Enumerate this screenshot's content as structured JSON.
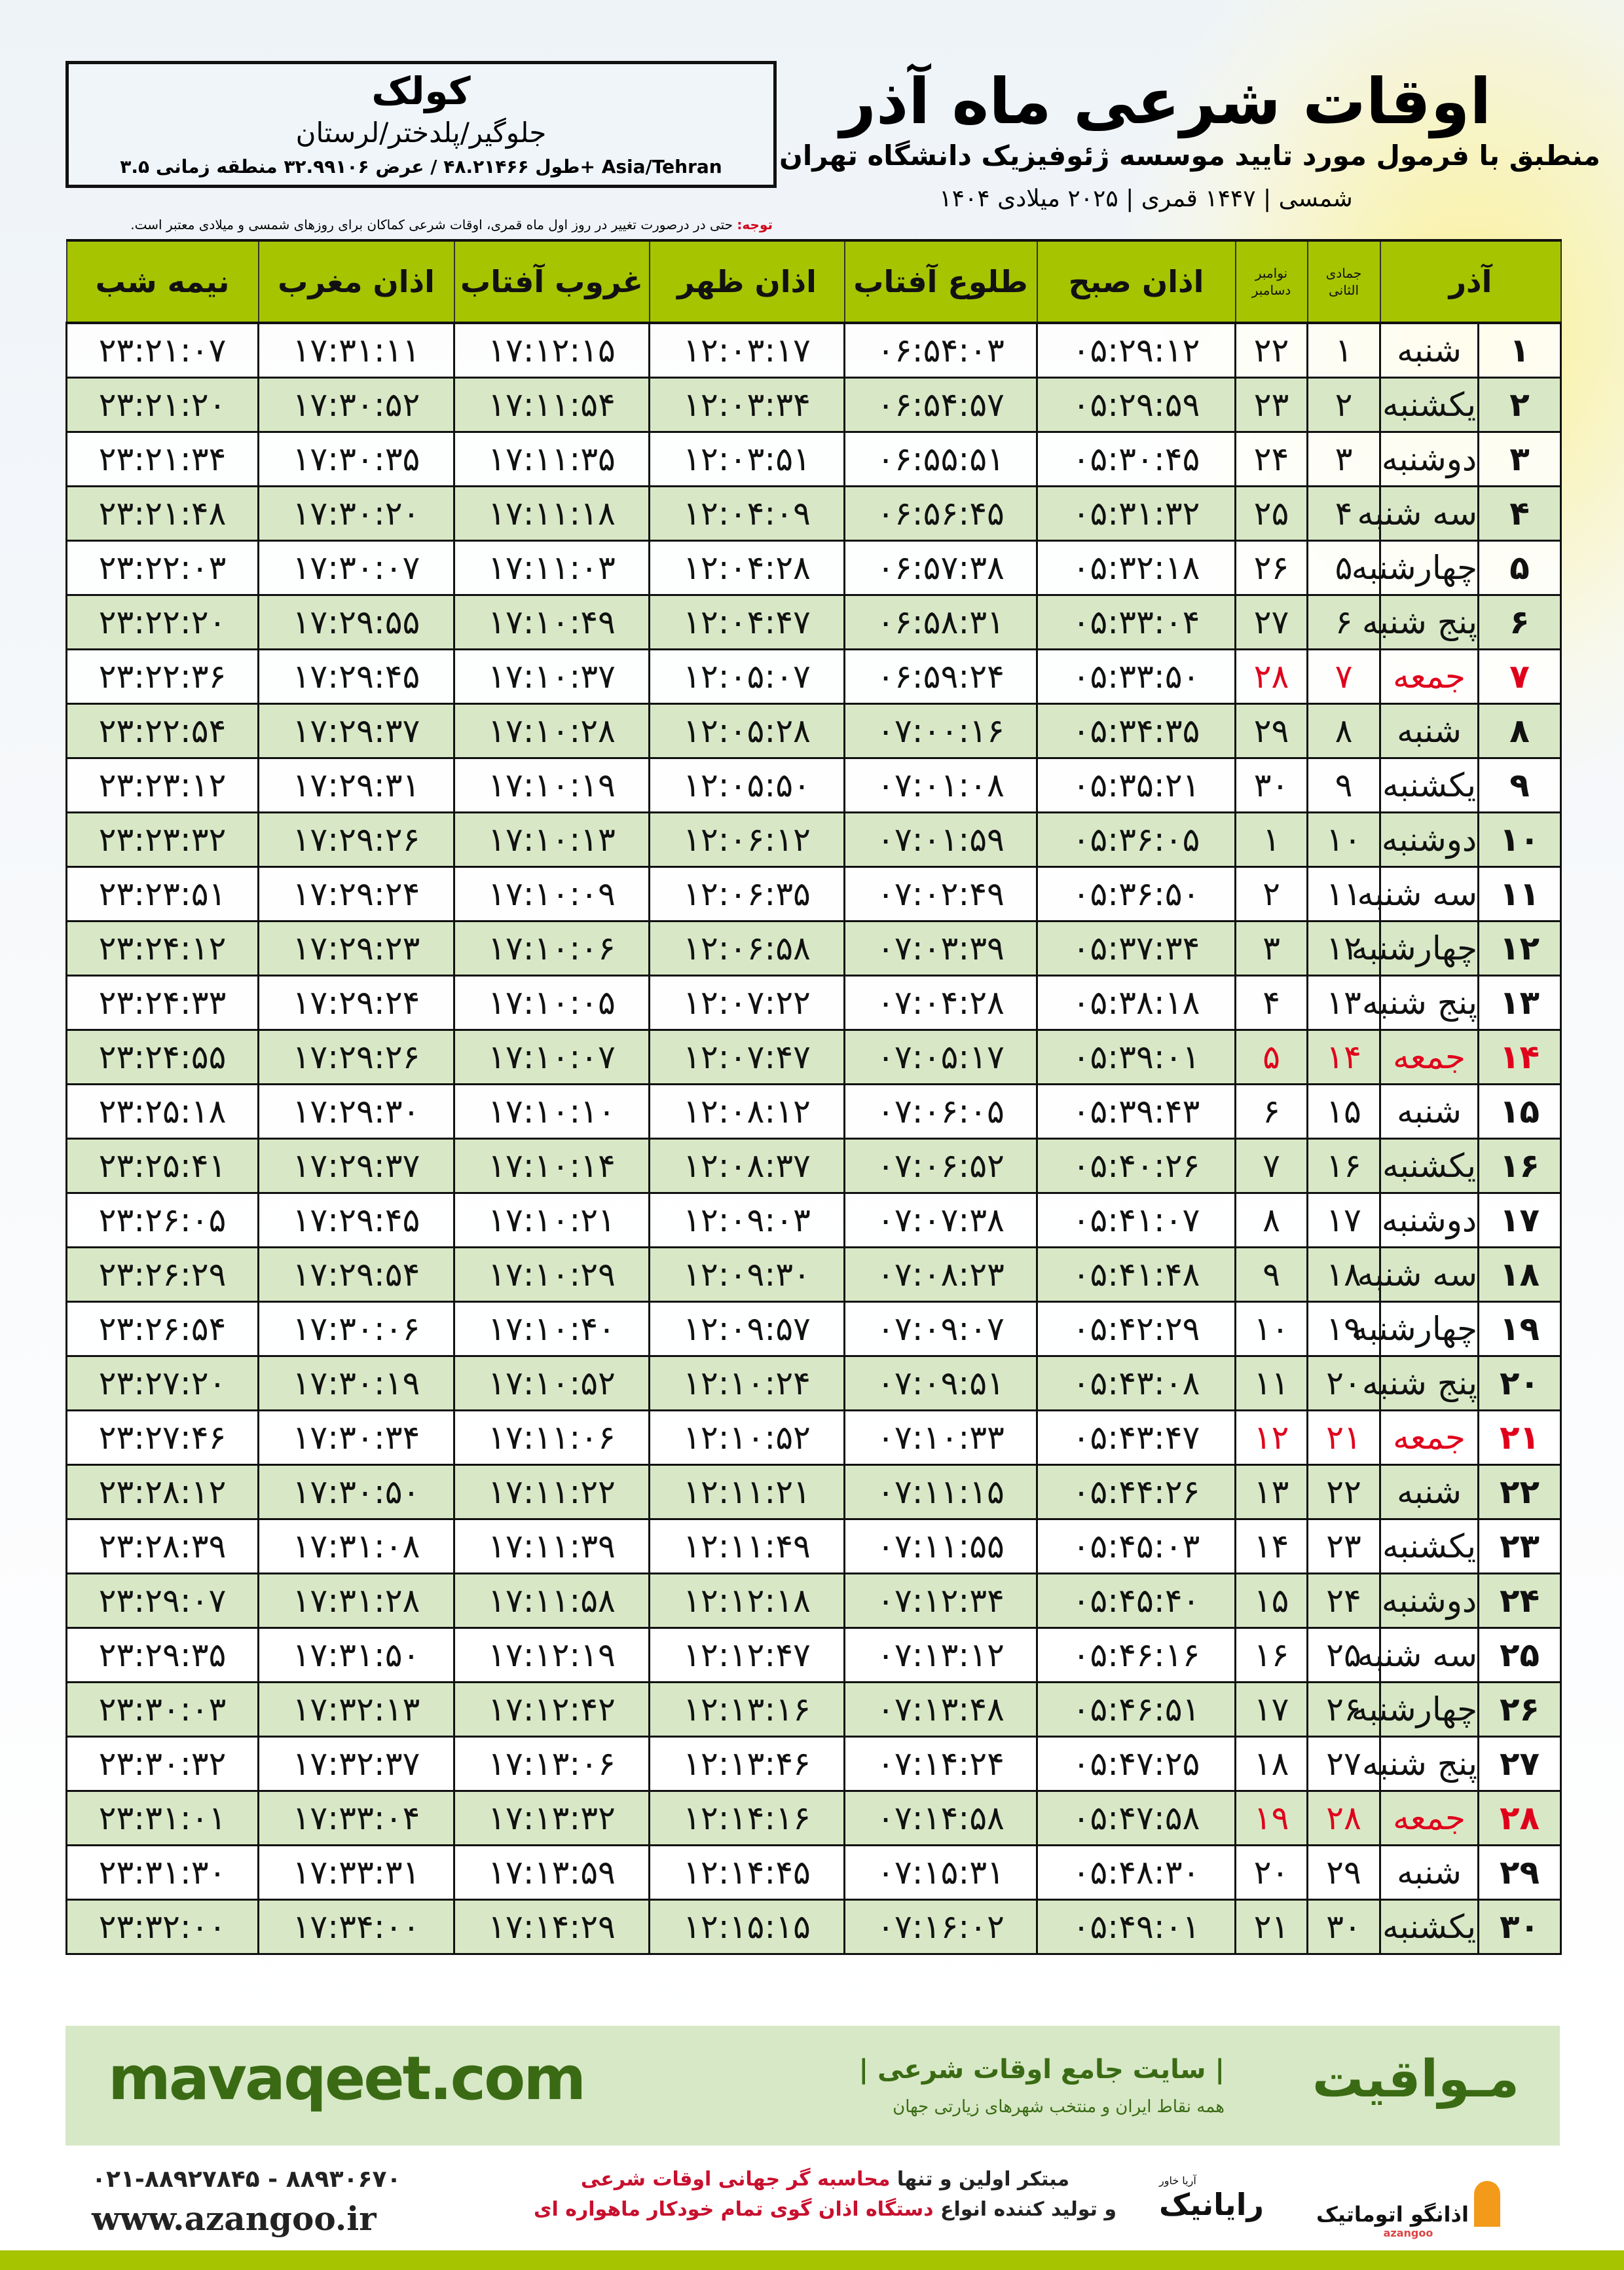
{
  "location": {
    "city": "کولک",
    "region": "جلوگیر/پلدختر/لرستان",
    "coords": "طول ۴۸.۲۱۴۶۶ / عرض ۳۲.۹۹۱۰۶ منطقه زمانی ۳.۵+ Asia/Tehran"
  },
  "header": {
    "title": "اوقات شرعی ماه آذر",
    "subtitle": "منطبق با فرمول مورد تایید موسسه ژئوفیزیک دانشگاه تهران",
    "dates": "۱۴۰۴ شمسی | ۱۴۴۷ قمری | ۲۰۲۵ میلادی",
    "note_label": "توجه:",
    "note_text": " حتی در درصورت تغییر در روز اول ماه قمری، اوقات شرعی کماکان برای روزهای شمسی و میلادی معتبر است."
  },
  "colors": {
    "header_green": "#a6c400",
    "row_green": "#d8e8c6",
    "holiday_red": "#e0001b",
    "brand_green": "#3a6b14"
  },
  "table": {
    "headers": {
      "azar": "آذر",
      "weekday": "",
      "jomada": "جمادی الثانی",
      "greg": "نوامبر دسامبر",
      "fajr": "اذان صبح",
      "sunrise": "طلوع آفتاب",
      "dhuhr": "اذان ظهر",
      "sunset": "غروب آفتاب",
      "maghrib": "اذان مغرب",
      "midnight": "نیمه شب"
    },
    "rows": [
      {
        "holiday": false,
        "c": [
          "۱",
          "شنبه",
          "۱",
          "۲۲",
          "۰۵:۲۹:۱۲",
          "۰۶:۵۴:۰۳",
          "۱۲:۰۳:۱۷",
          "۱۷:۱۲:۱۵",
          "۱۷:۳۱:۱۱",
          "۲۳:۲۱:۰۷"
        ]
      },
      {
        "holiday": false,
        "c": [
          "۲",
          "یکشنبه",
          "۲",
          "۲۳",
          "۰۵:۲۹:۵۹",
          "۰۶:۵۴:۵۷",
          "۱۲:۰۳:۳۴",
          "۱۷:۱۱:۵۴",
          "۱۷:۳۰:۵۲",
          "۲۳:۲۱:۲۰"
        ]
      },
      {
        "holiday": false,
        "c": [
          "۳",
          "دوشنبه",
          "۳",
          "۲۴",
          "۰۵:۳۰:۴۵",
          "۰۶:۵۵:۵۱",
          "۱۲:۰۳:۵۱",
          "۱۷:۱۱:۳۵",
          "۱۷:۳۰:۳۵",
          "۲۳:۲۱:۳۴"
        ]
      },
      {
        "holiday": false,
        "c": [
          "۴",
          "سه شنبه",
          "۴",
          "۲۵",
          "۰۵:۳۱:۳۲",
          "۰۶:۵۶:۴۵",
          "۱۲:۰۴:۰۹",
          "۱۷:۱۱:۱۸",
          "۱۷:۳۰:۲۰",
          "۲۳:۲۱:۴۸"
        ]
      },
      {
        "holiday": false,
        "c": [
          "۵",
          "چهارشنبه",
          "۵",
          "۲۶",
          "۰۵:۳۲:۱۸",
          "۰۶:۵۷:۳۸",
          "۱۲:۰۴:۲۸",
          "۱۷:۱۱:۰۳",
          "۱۷:۳۰:۰۷",
          "۲۳:۲۲:۰۳"
        ]
      },
      {
        "holiday": false,
        "c": [
          "۶",
          "پنج شنبه",
          "۶",
          "۲۷",
          "۰۵:۳۳:۰۴",
          "۰۶:۵۸:۳۱",
          "۱۲:۰۴:۴۷",
          "۱۷:۱۰:۴۹",
          "۱۷:۲۹:۵۵",
          "۲۳:۲۲:۲۰"
        ]
      },
      {
        "holiday": true,
        "c": [
          "۷",
          "جمعه",
          "۷",
          "۲۸",
          "۰۵:۳۳:۵۰",
          "۰۶:۵۹:۲۴",
          "۱۲:۰۵:۰۷",
          "۱۷:۱۰:۳۷",
          "۱۷:۲۹:۴۵",
          "۲۳:۲۲:۳۶"
        ]
      },
      {
        "holiday": false,
        "c": [
          "۸",
          "شنبه",
          "۸",
          "۲۹",
          "۰۵:۳۴:۳۵",
          "۰۷:۰۰:۱۶",
          "۱۲:۰۵:۲۸",
          "۱۷:۱۰:۲۸",
          "۱۷:۲۹:۳۷",
          "۲۳:۲۲:۵۴"
        ]
      },
      {
        "holiday": false,
        "c": [
          "۹",
          "یکشنبه",
          "۹",
          "۳۰",
          "۰۵:۳۵:۲۱",
          "۰۷:۰۱:۰۸",
          "۱۲:۰۵:۵۰",
          "۱۷:۱۰:۱۹",
          "۱۷:۲۹:۳۱",
          "۲۳:۲۳:۱۲"
        ]
      },
      {
        "holiday": false,
        "c": [
          "۱۰",
          "دوشنبه",
          "۱۰",
          "۱",
          "۰۵:۳۶:۰۵",
          "۰۷:۰۱:۵۹",
          "۱۲:۰۶:۱۲",
          "۱۷:۱۰:۱۳",
          "۱۷:۲۹:۲۶",
          "۲۳:۲۳:۳۲"
        ]
      },
      {
        "holiday": false,
        "c": [
          "۱۱",
          "سه شنبه",
          "۱۱",
          "۲",
          "۰۵:۳۶:۵۰",
          "۰۷:۰۲:۴۹",
          "۱۲:۰۶:۳۵",
          "۱۷:۱۰:۰۹",
          "۱۷:۲۹:۲۴",
          "۲۳:۲۳:۵۱"
        ]
      },
      {
        "holiday": false,
        "c": [
          "۱۲",
          "چهارشنبه",
          "۱۲",
          "۳",
          "۰۵:۳۷:۳۴",
          "۰۷:۰۳:۳۹",
          "۱۲:۰۶:۵۸",
          "۱۷:۱۰:۰۶",
          "۱۷:۲۹:۲۳",
          "۲۳:۲۴:۱۲"
        ]
      },
      {
        "holiday": false,
        "c": [
          "۱۳",
          "پنج شنبه",
          "۱۳",
          "۴",
          "۰۵:۳۸:۱۸",
          "۰۷:۰۴:۲۸",
          "۱۲:۰۷:۲۲",
          "۱۷:۱۰:۰۵",
          "۱۷:۲۹:۲۴",
          "۲۳:۲۴:۳۳"
        ]
      },
      {
        "holiday": true,
        "c": [
          "۱۴",
          "جمعه",
          "۱۴",
          "۵",
          "۰۵:۳۹:۰۱",
          "۰۷:۰۵:۱۷",
          "۱۲:۰۷:۴۷",
          "۱۷:۱۰:۰۷",
          "۱۷:۲۹:۲۶",
          "۲۳:۲۴:۵۵"
        ]
      },
      {
        "holiday": false,
        "c": [
          "۱۵",
          "شنبه",
          "۱۵",
          "۶",
          "۰۵:۳۹:۴۳",
          "۰۷:۰۶:۰۵",
          "۱۲:۰۸:۱۲",
          "۱۷:۱۰:۱۰",
          "۱۷:۲۹:۳۰",
          "۲۳:۲۵:۱۸"
        ]
      },
      {
        "holiday": false,
        "c": [
          "۱۶",
          "یکشنبه",
          "۱۶",
          "۷",
          "۰۵:۴۰:۲۶",
          "۰۷:۰۶:۵۲",
          "۱۲:۰۸:۳۷",
          "۱۷:۱۰:۱۴",
          "۱۷:۲۹:۳۷",
          "۲۳:۲۵:۴۱"
        ]
      },
      {
        "holiday": false,
        "c": [
          "۱۷",
          "دوشنبه",
          "۱۷",
          "۸",
          "۰۵:۴۱:۰۷",
          "۰۷:۰۷:۳۸",
          "۱۲:۰۹:۰۳",
          "۱۷:۱۰:۲۱",
          "۱۷:۲۹:۴۵",
          "۲۳:۲۶:۰۵"
        ]
      },
      {
        "holiday": false,
        "c": [
          "۱۸",
          "سه شنبه",
          "۱۸",
          "۹",
          "۰۵:۴۱:۴۸",
          "۰۷:۰۸:۲۳",
          "۱۲:۰۹:۳۰",
          "۱۷:۱۰:۲۹",
          "۱۷:۲۹:۵۴",
          "۲۳:۲۶:۲۹"
        ]
      },
      {
        "holiday": false,
        "c": [
          "۱۹",
          "چهارشنبه",
          "۱۹",
          "۱۰",
          "۰۵:۴۲:۲۹",
          "۰۷:۰۹:۰۷",
          "۱۲:۰۹:۵۷",
          "۱۷:۱۰:۴۰",
          "۱۷:۳۰:۰۶",
          "۲۳:۲۶:۵۴"
        ]
      },
      {
        "holiday": false,
        "c": [
          "۲۰",
          "پنج شنبه",
          "۲۰",
          "۱۱",
          "۰۵:۴۳:۰۸",
          "۰۷:۰۹:۵۱",
          "۱۲:۱۰:۲۴",
          "۱۷:۱۰:۵۲",
          "۱۷:۳۰:۱۹",
          "۲۳:۲۷:۲۰"
        ]
      },
      {
        "holiday": true,
        "c": [
          "۲۱",
          "جمعه",
          "۲۱",
          "۱۲",
          "۰۵:۴۳:۴۷",
          "۰۷:۱۰:۳۳",
          "۱۲:۱۰:۵۲",
          "۱۷:۱۱:۰۶",
          "۱۷:۳۰:۳۴",
          "۲۳:۲۷:۴۶"
        ]
      },
      {
        "holiday": false,
        "c": [
          "۲۲",
          "شنبه",
          "۲۲",
          "۱۳",
          "۰۵:۴۴:۲۶",
          "۰۷:۱۱:۱۵",
          "۱۲:۱۱:۲۱",
          "۱۷:۱۱:۲۲",
          "۱۷:۳۰:۵۰",
          "۲۳:۲۸:۱۲"
        ]
      },
      {
        "holiday": false,
        "c": [
          "۲۳",
          "یکشنبه",
          "۲۳",
          "۱۴",
          "۰۵:۴۵:۰۳",
          "۰۷:۱۱:۵۵",
          "۱۲:۱۱:۴۹",
          "۱۷:۱۱:۳۹",
          "۱۷:۳۱:۰۸",
          "۲۳:۲۸:۳۹"
        ]
      },
      {
        "holiday": false,
        "c": [
          "۲۴",
          "دوشنبه",
          "۲۴",
          "۱۵",
          "۰۵:۴۵:۴۰",
          "۰۷:۱۲:۳۴",
          "۱۲:۱۲:۱۸",
          "۱۷:۱۱:۵۸",
          "۱۷:۳۱:۲۸",
          "۲۳:۲۹:۰۷"
        ]
      },
      {
        "holiday": false,
        "c": [
          "۲۵",
          "سه شنبه",
          "۲۵",
          "۱۶",
          "۰۵:۴۶:۱۶",
          "۰۷:۱۳:۱۲",
          "۱۲:۱۲:۴۷",
          "۱۷:۱۲:۱۹",
          "۱۷:۳۱:۵۰",
          "۲۳:۲۹:۳۵"
        ]
      },
      {
        "holiday": false,
        "c": [
          "۲۶",
          "چهارشنبه",
          "۲۶",
          "۱۷",
          "۰۵:۴۶:۵۱",
          "۰۷:۱۳:۴۸",
          "۱۲:۱۳:۱۶",
          "۱۷:۱۲:۴۲",
          "۱۷:۳۲:۱۳",
          "۲۳:۳۰:۰۳"
        ]
      },
      {
        "holiday": false,
        "c": [
          "۲۷",
          "پنج شنبه",
          "۲۷",
          "۱۸",
          "۰۵:۴۷:۲۵",
          "۰۷:۱۴:۲۴",
          "۱۲:۱۳:۴۶",
          "۱۷:۱۳:۰۶",
          "۱۷:۳۲:۳۷",
          "۲۳:۳۰:۳۲"
        ]
      },
      {
        "holiday": true,
        "c": [
          "۲۸",
          "جمعه",
          "۲۸",
          "۱۹",
          "۰۵:۴۷:۵۸",
          "۰۷:۱۴:۵۸",
          "۱۲:۱۴:۱۶",
          "۱۷:۱۳:۳۲",
          "۱۷:۳۳:۰۴",
          "۲۳:۳۱:۰۱"
        ]
      },
      {
        "holiday": false,
        "c": [
          "۲۹",
          "شنبه",
          "۲۹",
          "۲۰",
          "۰۵:۴۸:۳۰",
          "۰۷:۱۵:۳۱",
          "۱۲:۱۴:۴۵",
          "۱۷:۱۳:۵۹",
          "۱۷:۳۳:۳۱",
          "۲۳:۳۱:۳۰"
        ]
      },
      {
        "holiday": false,
        "c": [
          "۳۰",
          "یکشنبه",
          "۳۰",
          "۲۱",
          "۰۵:۴۹:۰۱",
          "۰۷:۱۶:۰۲",
          "۱۲:۱۵:۱۵",
          "۱۷:۱۴:۲۹",
          "۱۷:۳۴:۰۰",
          "۲۳:۳۲:۰۰"
        ]
      }
    ]
  },
  "footer": {
    "site": "mavaqeet.com",
    "brand": "مـواقیت",
    "tagline": "| سایت جامع اوقات شرعی |",
    "tagline2": "همه نقاط ایران و منتخب شهرهای زیارتی جهان",
    "phone": "۰۲۱-۸۸۹۲۷۸۴۵ - ۸۸۹۳۰۶۷۰",
    "web": "www.azangoo.ir",
    "promo_1a": "مبتکر اولین و تنها ",
    "promo_1b": "محاسبه گر جهانی اوقات شرعی",
    "promo_2a": "و تولید کننده انواع ",
    "promo_2b": "دستگاه اذان گوی تمام خودکار ماهواره ای",
    "logo_rayanik": "رایانیک",
    "logo_rayanik_small": "آریا خاور",
    "logo_azangoo": "اذانگو اتوماتیک",
    "logo_azangoo_small": "azangoo"
  }
}
